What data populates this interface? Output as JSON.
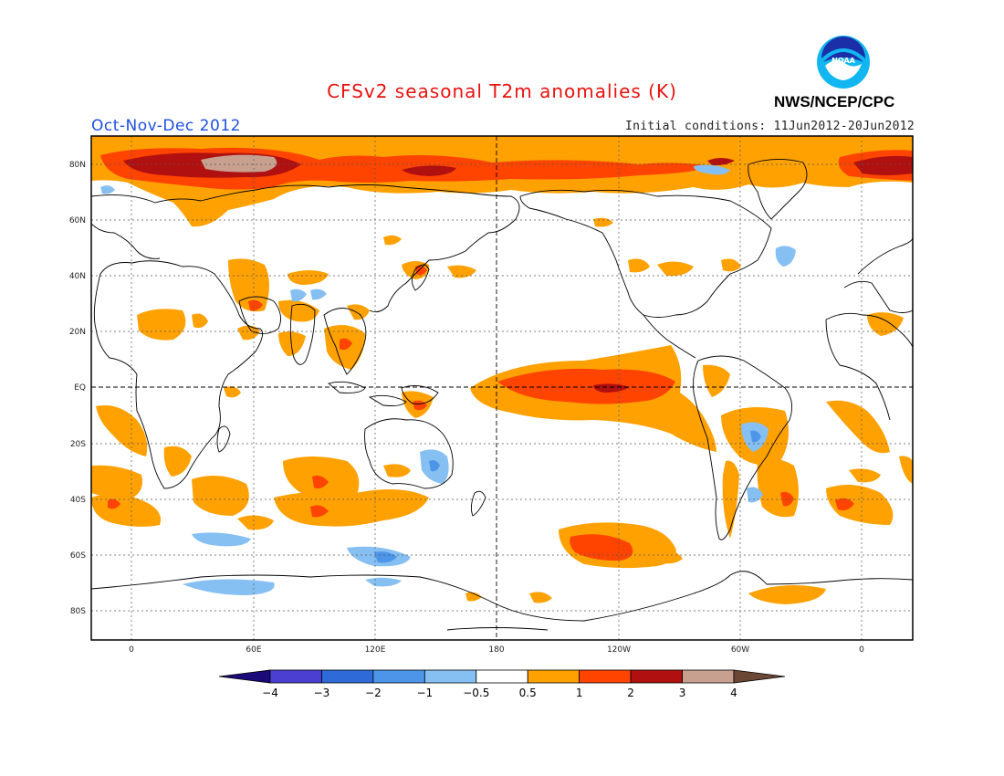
{
  "header": {
    "title": "CFSv2 seasonal T2m anomalies (K)",
    "period": "Oct-Nov-Dec 2012",
    "initial_conditions": "Initial conditions: 11Jun2012-20Jun2012",
    "agency": "NWS/NCEP/CPC",
    "logo_text": "NOAA"
  },
  "map": {
    "lat_labels": [
      "80N",
      "60N",
      "40N",
      "20N",
      "EQ",
      "20S",
      "40S",
      "60S",
      "80S"
    ],
    "lon_labels": [
      "0",
      "60E",
      "120E",
      "180",
      "120W",
      "60W",
      "0"
    ]
  },
  "colorbar": {
    "labels": [
      "−4",
      "−3",
      "−2",
      "−1",
      "−0.5",
      "0.5",
      "1",
      "2",
      "3",
      "4"
    ],
    "colors": [
      "#1b0a7a",
      "#4a3fd0",
      "#2f6bd8",
      "#4d95e8",
      "#86c0f2",
      "#ffffff",
      "#ffa100",
      "#ff4400",
      "#b01010",
      "#c8a090",
      "#6b4836"
    ]
  },
  "colors": {
    "lt_orange": "#ffa100",
    "red_orange": "#ff4400",
    "dark_red": "#b01010",
    "tan": "#c8a090",
    "lt_blue": "#86c0f2",
    "mid_blue": "#4d95e8"
  }
}
